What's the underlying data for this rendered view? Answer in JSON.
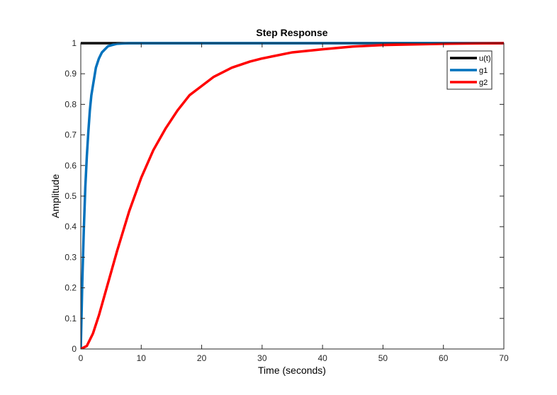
{
  "chart_data": {
    "type": "line",
    "title": "Step Response",
    "xlabel": "Time (seconds)",
    "ylabel": "Amplitude",
    "xlim": [
      0,
      70
    ],
    "ylim": [
      0,
      1
    ],
    "x_ticks": [
      0,
      10,
      20,
      30,
      40,
      50,
      60,
      70
    ],
    "y_ticks": [
      0,
      0.1,
      0.2,
      0.3,
      0.4,
      0.5,
      0.6,
      0.7,
      0.8,
      0.9,
      1
    ],
    "grid": false,
    "legend_position": "top-right",
    "series": [
      {
        "name": "u(t)",
        "color": "#000000",
        "x": [
          0,
          5,
          10,
          20,
          30,
          40,
          50,
          60,
          70
        ],
        "y": [
          1,
          1,
          1,
          1,
          1,
          1,
          1,
          1,
          1
        ]
      },
      {
        "name": "g1",
        "color": "#0072bd",
        "x": [
          0,
          0.25,
          0.5,
          0.75,
          1,
          1.25,
          1.5,
          1.75,
          2,
          2.5,
          3,
          3.5,
          4,
          4.5,
          5,
          6,
          7,
          8,
          10,
          15,
          20,
          30,
          40,
          50,
          60,
          70
        ],
        "y": [
          0,
          0.22,
          0.39,
          0.53,
          0.63,
          0.71,
          0.78,
          0.83,
          0.86,
          0.92,
          0.95,
          0.97,
          0.98,
          0.99,
          0.993,
          0.998,
          0.999,
          1,
          1,
          1,
          1,
          1,
          1,
          1,
          1,
          1
        ]
      },
      {
        "name": "g2",
        "color": "#ff0000",
        "x": [
          0,
          1,
          2,
          3,
          4,
          5,
          6,
          8,
          10,
          12,
          14,
          16,
          18,
          20,
          22,
          25,
          28,
          30,
          35,
          40,
          45,
          50,
          55,
          60,
          65,
          70
        ],
        "y": [
          0,
          0.01,
          0.05,
          0.11,
          0.18,
          0.25,
          0.32,
          0.45,
          0.56,
          0.65,
          0.72,
          0.78,
          0.83,
          0.86,
          0.89,
          0.92,
          0.94,
          0.95,
          0.97,
          0.98,
          0.989,
          0.994,
          0.996,
          0.998,
          0.999,
          1
        ]
      }
    ]
  }
}
